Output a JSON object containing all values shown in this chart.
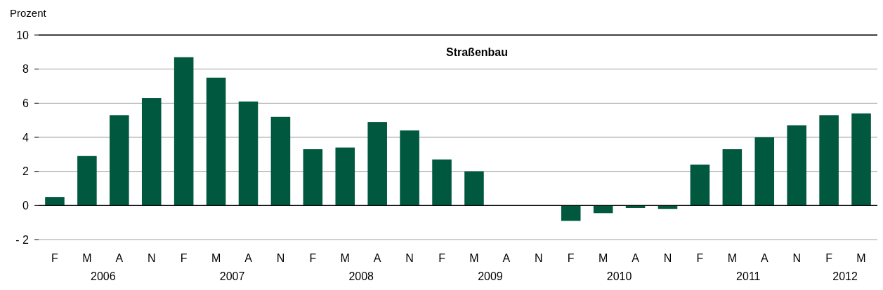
{
  "chart_data": {
    "type": "bar",
    "title": "Straßenbau",
    "ylabel": "Prozent",
    "categories": [
      "F",
      "M",
      "A",
      "N",
      "F",
      "M",
      "A",
      "N",
      "F",
      "M",
      "A",
      "N",
      "F",
      "M",
      "A",
      "N",
      "F",
      "M",
      "A",
      "N",
      "F",
      "M",
      "A",
      "N",
      "F",
      "M"
    ],
    "values": [
      0.5,
      2.9,
      5.3,
      6.3,
      8.7,
      7.5,
      6.1,
      5.2,
      3.3,
      3.4,
      4.9,
      4.4,
      2.7,
      2.0,
      null,
      null,
      -0.9,
      -0.45,
      -0.15,
      -0.2,
      2.4,
      3.3,
      4.0,
      4.7,
      5.3,
      5.4
    ],
    "color": "#00583f",
    "ylim": [
      -2,
      10
    ],
    "yticks": [
      {
        "value": -2,
        "label": "- 2"
      },
      0,
      2,
      4,
      6,
      8,
      10
    ],
    "grid": "y",
    "annotations": [
      "2006",
      "2007",
      "2008",
      "2009",
      "2010",
      "2011",
      "2012"
    ]
  }
}
